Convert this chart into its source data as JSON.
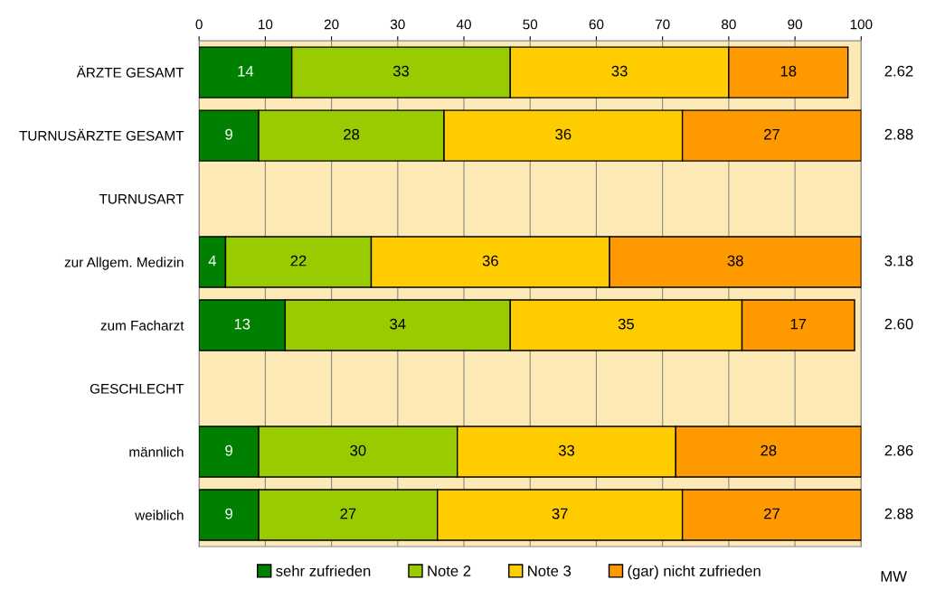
{
  "chart_data": {
    "type": "bar",
    "orientation": "horizontal",
    "stacked": true,
    "categories": [
      "ÄRZTE GESAMT",
      "TURNUSÄRZTE GESAMT",
      "TURNUSART",
      "zur Allgem. Medizin",
      "zum Facharzt",
      "GESCHLECHT",
      "männlich",
      "weiblich"
    ],
    "series": [
      {
        "name": "sehr zufrieden",
        "color": "#008000",
        "values": [
          14,
          9,
          null,
          4,
          13,
          null,
          9,
          9
        ]
      },
      {
        "name": "Note 2",
        "color": "#99cc00",
        "values": [
          33,
          28,
          null,
          22,
          34,
          null,
          30,
          27
        ]
      },
      {
        "name": "Note 3",
        "color": "#ffcc00",
        "values": [
          33,
          36,
          null,
          36,
          35,
          null,
          33,
          37
        ]
      },
      {
        "name": "(gar) nicht zufrieden",
        "color": "#ff9900",
        "values": [
          18,
          27,
          null,
          38,
          17,
          null,
          28,
          27
        ]
      }
    ],
    "xlim": [
      0,
      100
    ],
    "xticks": [
      0,
      10,
      20,
      30,
      40,
      50,
      60,
      70,
      80,
      90,
      100
    ],
    "grid": "x",
    "legend": "bottom",
    "data_labels": true,
    "annotations": [
      "2.62",
      "2.88",
      "3.18",
      "2.60",
      "2.86",
      "2.88",
      "MW"
    ]
  }
}
